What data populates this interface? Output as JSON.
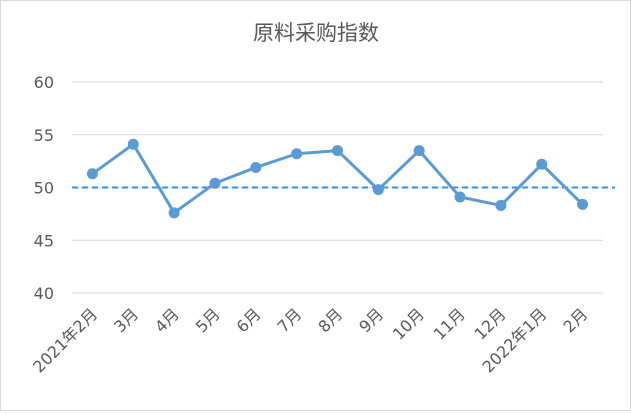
{
  "chart_data": {
    "type": "line",
    "title": "原料采购指数",
    "categories": [
      "2021年2月",
      "3月",
      "4月",
      "5月",
      "6月",
      "7月",
      "8月",
      "9月",
      "10月",
      "11月",
      "12月",
      "2022年1月",
      "2月"
    ],
    "series": [
      {
        "name": "原料采购指数",
        "color": "#5b9bd5",
        "values": [
          51.3,
          54.1,
          47.6,
          50.4,
          51.9,
          53.2,
          53.5,
          49.8,
          53.5,
          49.1,
          48.3,
          52.2,
          48.4
        ]
      }
    ],
    "ylim": [
      40,
      60
    ],
    "yticks": [
      40,
      45,
      50,
      55,
      60
    ],
    "grid": true,
    "reference_line": {
      "value": 50,
      "color": "#2e95e6",
      "dashed": true
    }
  }
}
